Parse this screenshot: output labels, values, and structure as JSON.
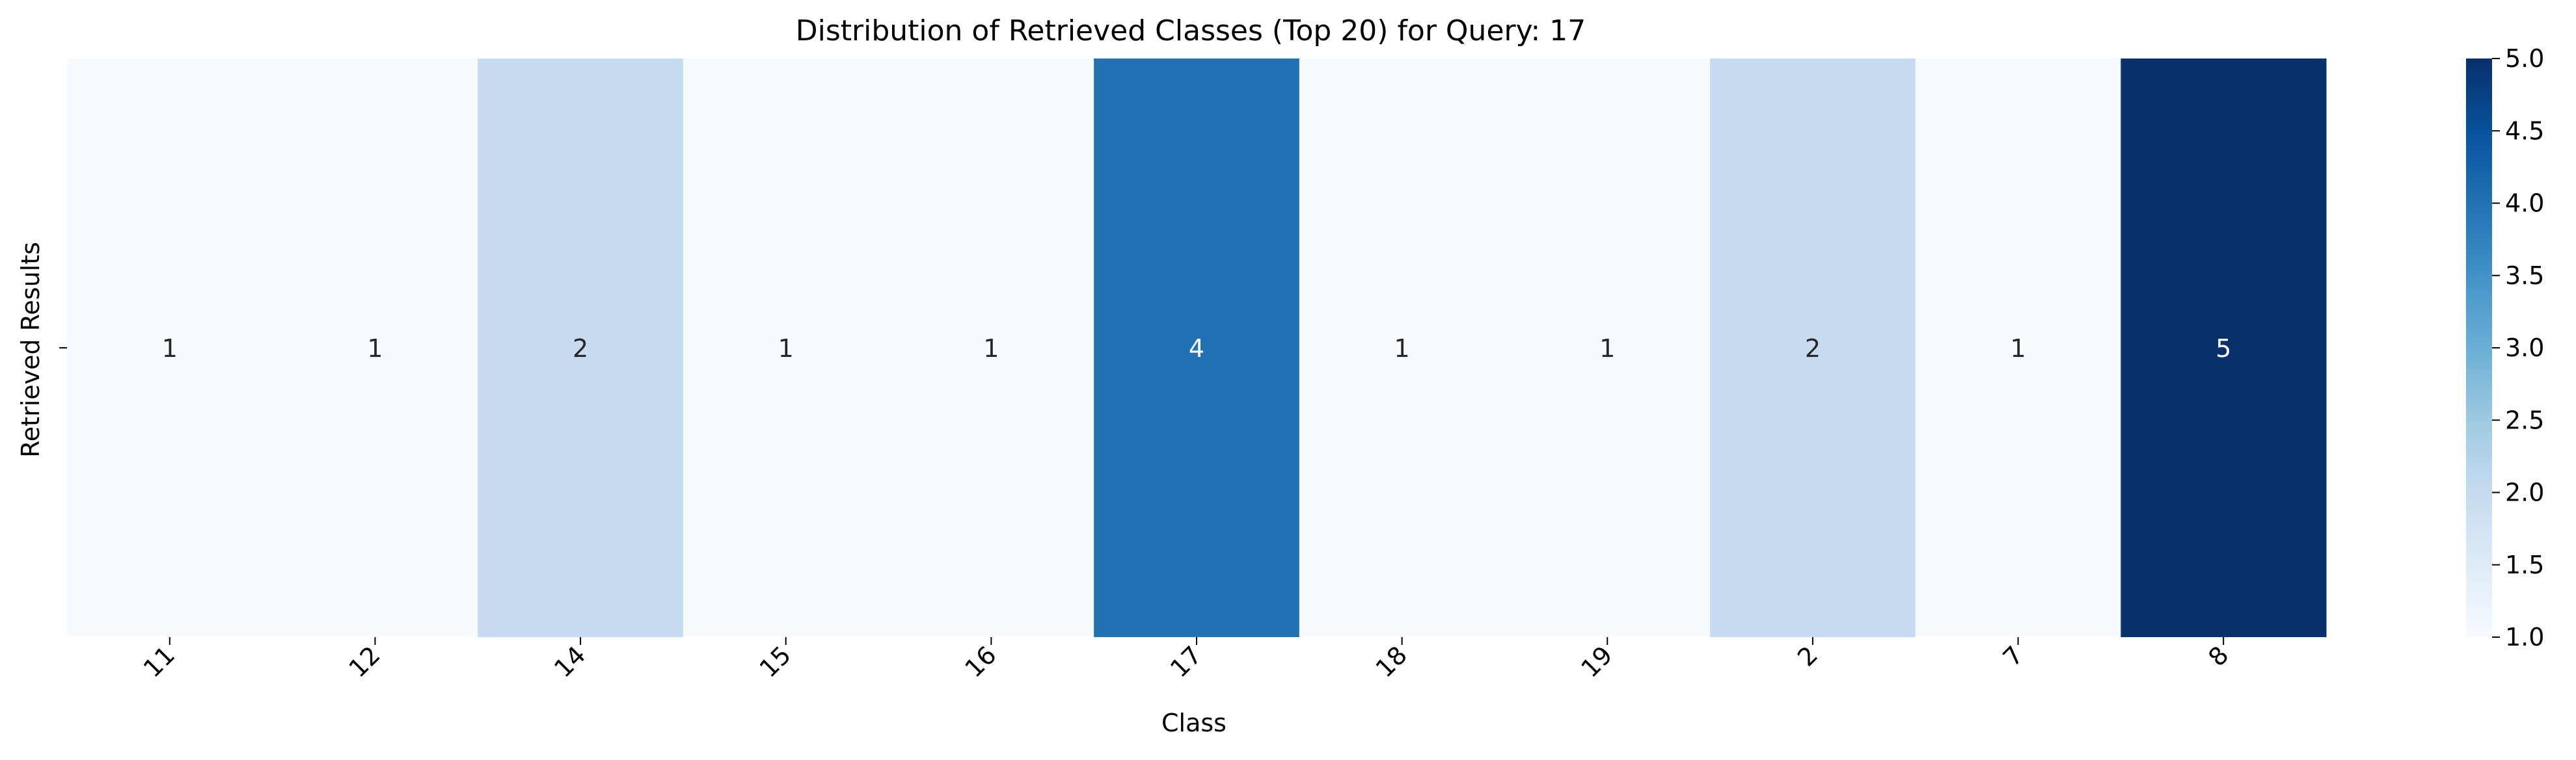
{
  "chart_data": {
    "type": "heatmap",
    "title": "Distribution of Retrieved Classes (Top 20) for Query: 17",
    "xlabel": "Class",
    "ylabel": "Retrieved Results",
    "categories": [
      "11",
      "12",
      "14",
      "15",
      "16",
      "17",
      "18",
      "19",
      "2",
      "7",
      "8"
    ],
    "rows": [
      ""
    ],
    "values": [
      [
        1,
        1,
        2,
        1,
        1,
        4,
        1,
        1,
        2,
        1,
        5
      ]
    ],
    "colorbar": {
      "min": 1.0,
      "max": 5.0,
      "ticks": [
        "1.0",
        "1.5",
        "2.0",
        "2.5",
        "3.0",
        "3.5",
        "4.0",
        "4.5",
        "5.0"
      ],
      "colormap": "Blues",
      "colors": [
        "#f7fbff",
        "#deebf7",
        "#c6dbef",
        "#9ecae1",
        "#6baed6",
        "#4292c6",
        "#2171b5",
        "#08519c",
        "#08306b"
      ]
    },
    "annotations": true,
    "grid": false
  }
}
